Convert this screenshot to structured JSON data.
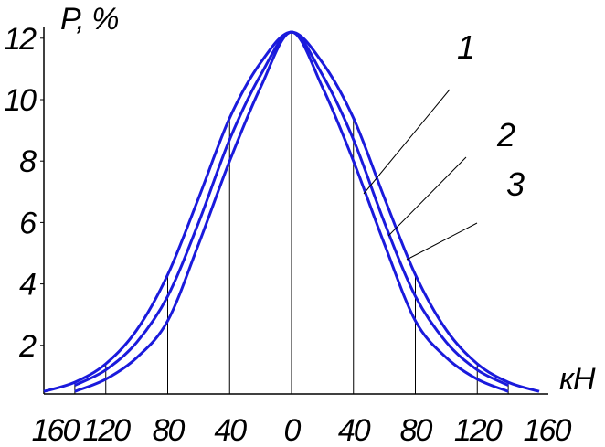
{
  "chart_data": {
    "type": "line",
    "ylabel": "P, %",
    "xlabel": "кН",
    "x_tick_labels": [
      "160",
      "120",
      "80",
      "40",
      "0",
      "40",
      "80",
      "120",
      "160"
    ],
    "y_tick_labels": [
      "2",
      "4",
      "6",
      "8",
      "10",
      "12"
    ],
    "xlim": [
      -160,
      160
    ],
    "ylim": [
      0,
      12.5
    ],
    "grid": false,
    "series": [
      {
        "name": "1",
        "color": "#1a1adc",
        "x": [
          -140,
          -120,
          -100,
          -80,
          -60,
          -40,
          -20,
          0,
          20,
          40,
          60,
          80,
          100,
          120,
          140
        ],
        "y": [
          0.5,
          0.9,
          1.6,
          2.8,
          5.3,
          8.0,
          10.4,
          12.2,
          10.4,
          8.0,
          5.3,
          2.8,
          1.6,
          0.9,
          0.5
        ]
      },
      {
        "name": "2",
        "color": "#1a1adc",
        "x": [
          -140,
          -120,
          -100,
          -80,
          -60,
          -40,
          -20,
          0,
          20,
          40,
          60,
          80,
          100,
          120,
          140
        ],
        "y": [
          0.7,
          1.2,
          2.1,
          3.6,
          6.0,
          8.7,
          10.8,
          12.2,
          10.8,
          8.7,
          6.0,
          3.6,
          2.1,
          1.2,
          0.7
        ]
      },
      {
        "name": "3",
        "color": "#1a1adc",
        "x": [
          -160,
          -140,
          -120,
          -100,
          -80,
          -60,
          -40,
          -20,
          0,
          20,
          40,
          60,
          80,
          100,
          120,
          140,
          160
        ],
        "y": [
          0.5,
          0.8,
          1.4,
          2.5,
          4.3,
          6.8,
          9.4,
          11.2,
          12.2,
          11.2,
          9.4,
          6.8,
          4.3,
          2.5,
          1.4,
          0.8,
          0.5
        ]
      }
    ],
    "reference_lines_x": [
      -140,
      -120,
      -80,
      -40,
      0,
      40,
      80,
      120,
      140
    ],
    "annotations": [
      "1",
      "2",
      "3"
    ]
  }
}
